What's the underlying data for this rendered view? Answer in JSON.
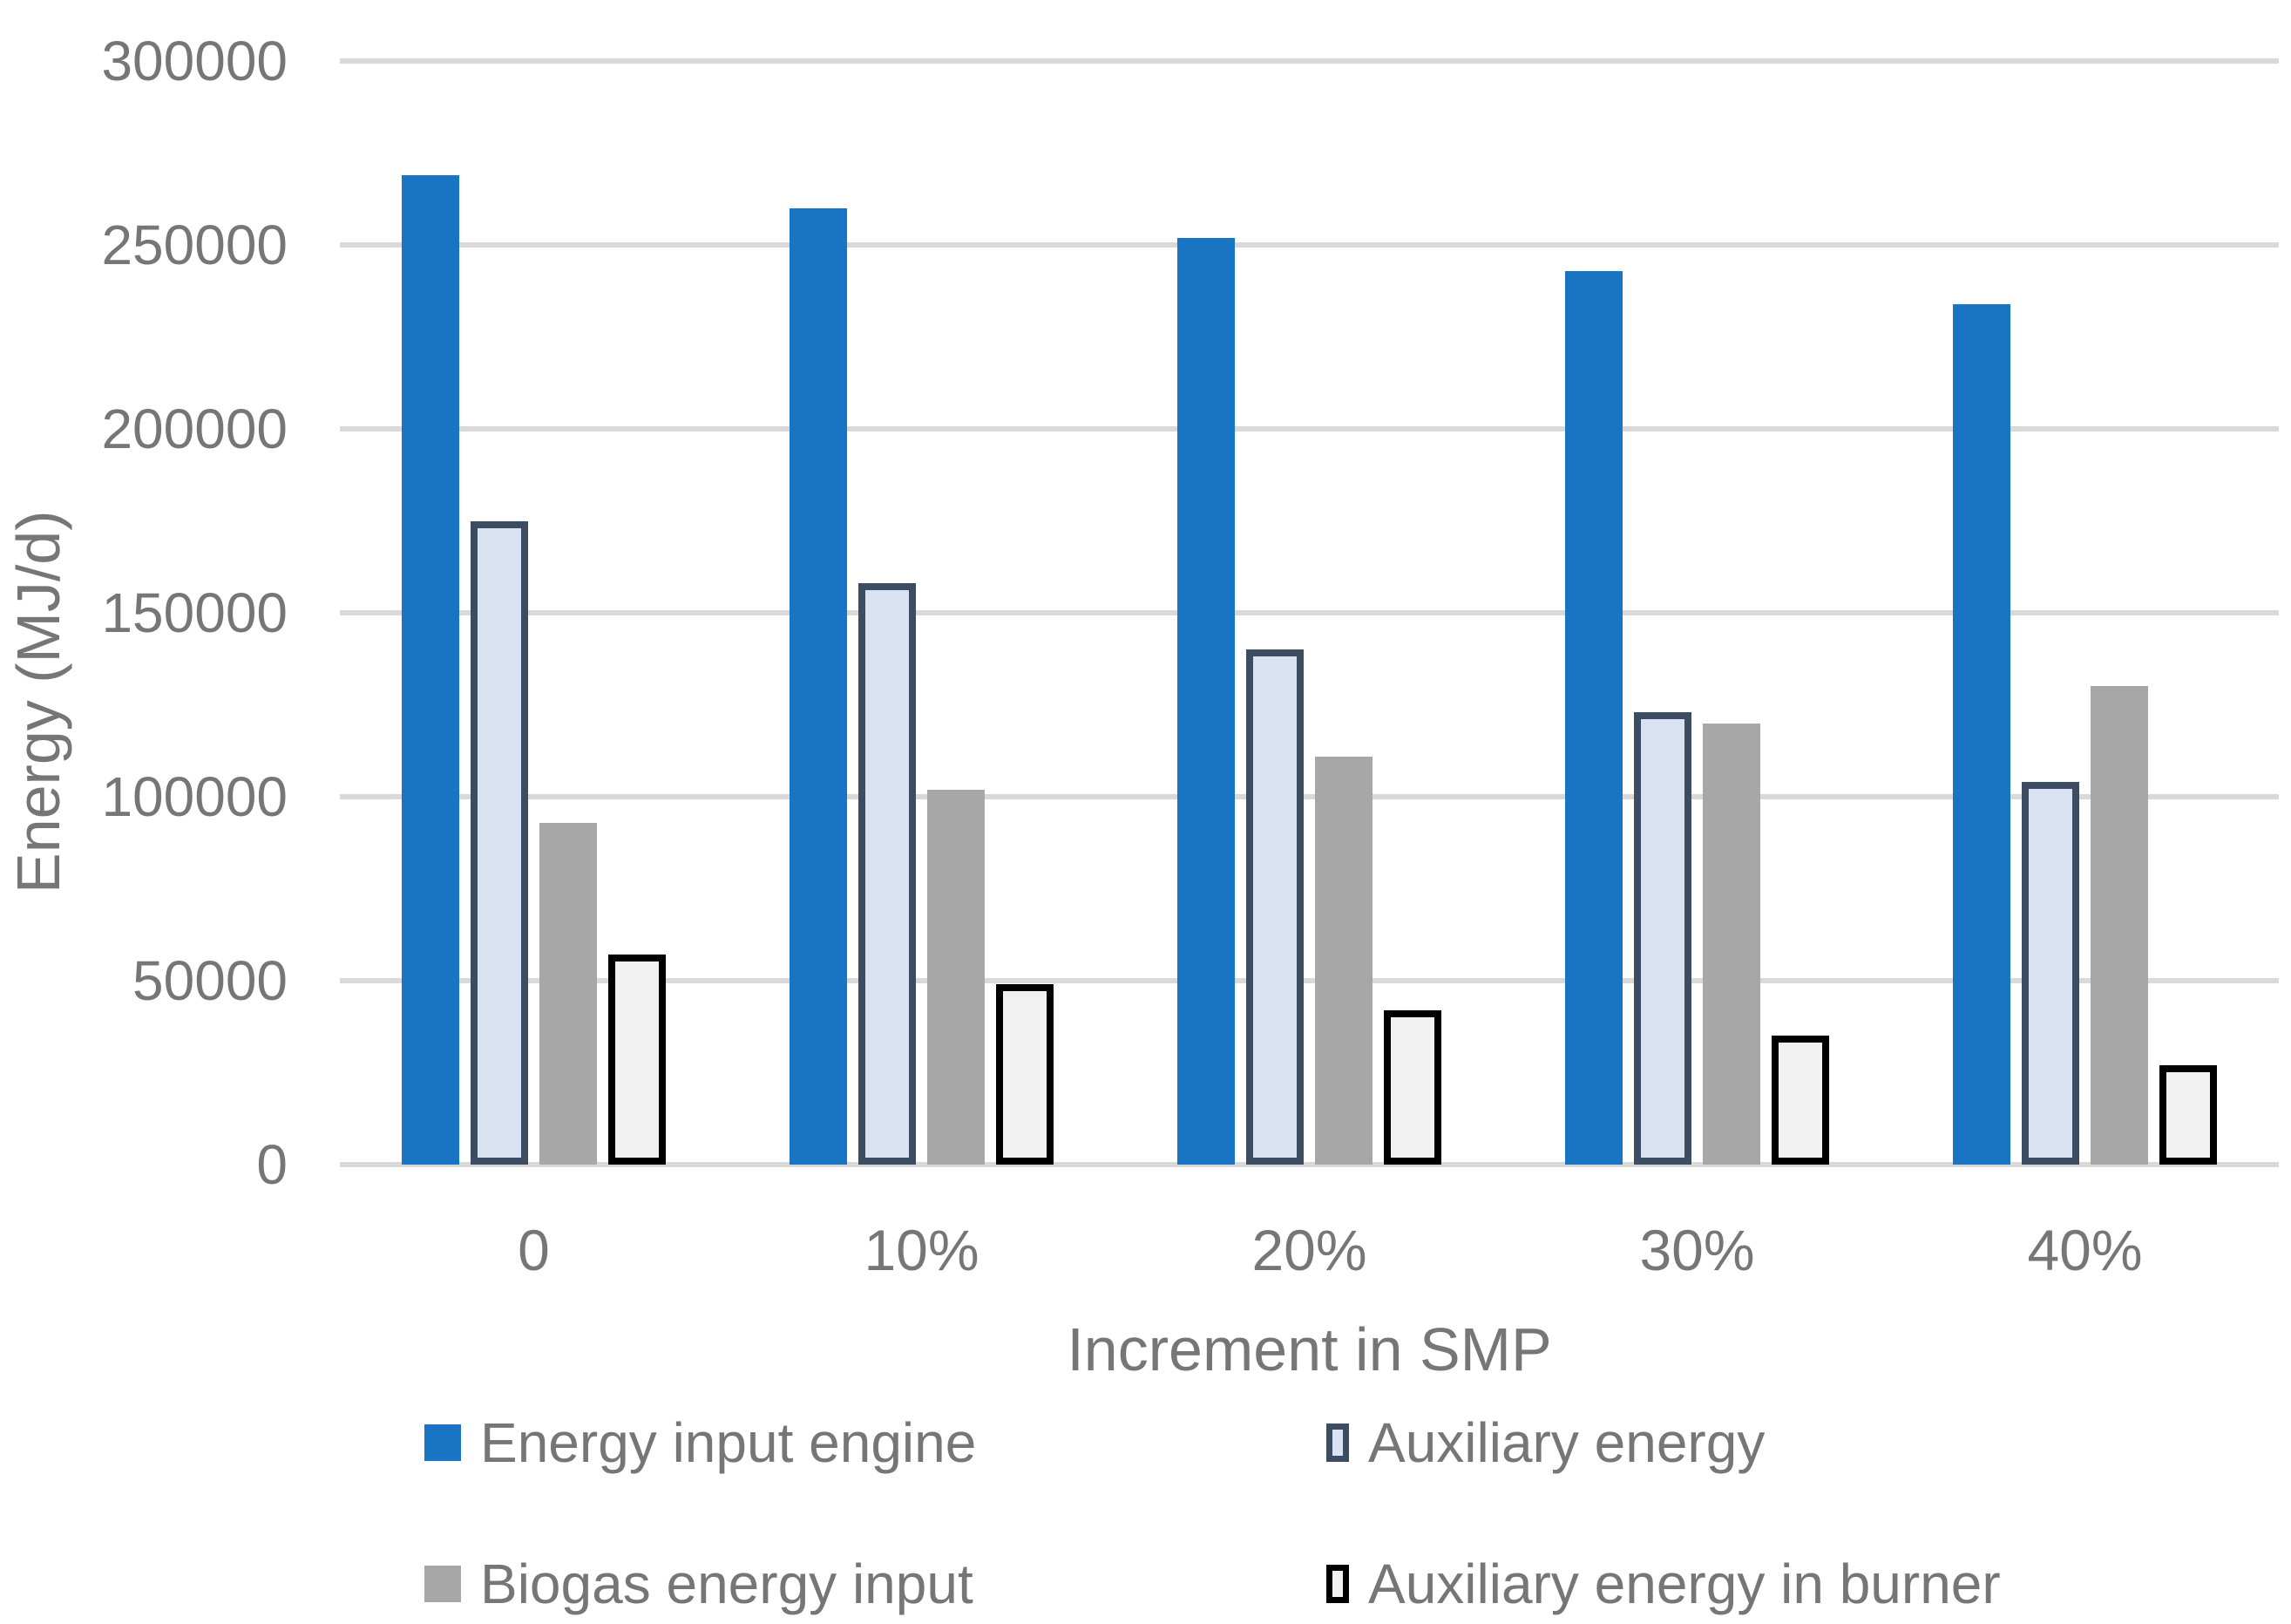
{
  "chart_data": {
    "type": "bar",
    "title": "",
    "xlabel": "Increment in SMP",
    "ylabel": "Energy (MJ/d)",
    "categories": [
      "0",
      "10%",
      "20%",
      "30%",
      "40%"
    ],
    "series": [
      {
        "name": "Energy input engine",
        "color": "#1A74C4",
        "border_color": null,
        "values": [
          269000,
          260000,
          252000,
          243000,
          234000
        ]
      },
      {
        "name": "Auxiliary energy",
        "color": "#D9E2F1",
        "border_color": "#3B4C63",
        "values": [
          175000,
          158000,
          140000,
          123000,
          104000
        ]
      },
      {
        "name": "Biogas energy input",
        "color": "#A7A7A7",
        "border_color": null,
        "values": [
          93000,
          102000,
          111000,
          120000,
          130000
        ]
      },
      {
        "name": "Auxiliary energy in burner",
        "color": "#F1F1F2",
        "border_color": "#000000",
        "values": [
          57000,
          49000,
          42000,
          35000,
          27000
        ]
      }
    ],
    "ylim": [
      0,
      300000
    ],
    "ytick_step": 50000,
    "yticks": [
      "0",
      "50000",
      "100000",
      "150000",
      "200000",
      "250000",
      "300000"
    ],
    "grid": true,
    "legend_position": "bottom"
  },
  "colors": {
    "gridline": "#D9D9D9",
    "axis_text": "#767676",
    "background": "#FFFFFF"
  }
}
